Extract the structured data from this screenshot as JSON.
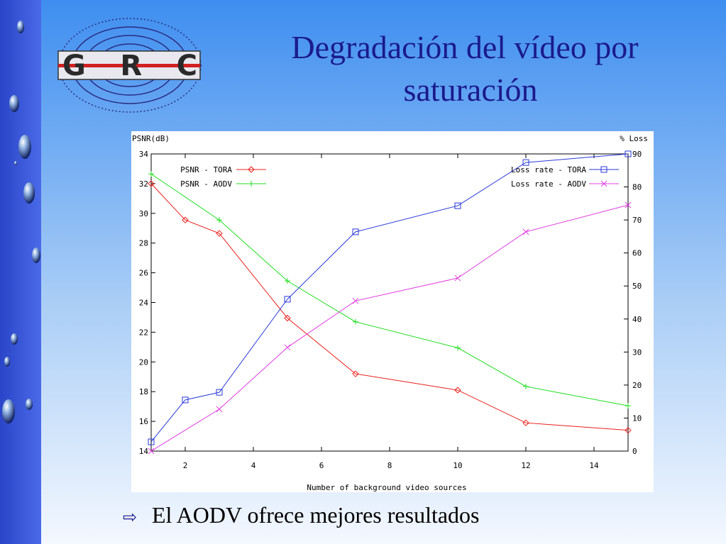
{
  "slide": {
    "logo": "GRC",
    "title_lines": [
      "Degradación del vídeo por",
      "saturación"
    ],
    "bullet": "El AODV ofrece mejores resultados"
  },
  "chart_data": {
    "type": "line",
    "ylabel": "PSNR(dB)",
    "y2label": "% Loss",
    "xlabel": "Number of background video sources",
    "xlim": [
      1,
      15
    ],
    "xticks": [
      2,
      4,
      6,
      8,
      10,
      12,
      14
    ],
    "ylim": [
      14,
      34
    ],
    "yticks": [
      14,
      16,
      18,
      20,
      22,
      24,
      26,
      28,
      30,
      32,
      34
    ],
    "y2lim": [
      0,
      90
    ],
    "y2ticks": [
      0,
      10,
      20,
      30,
      40,
      50,
      60,
      70,
      80,
      90
    ],
    "legend": "upper left",
    "legend2": "upper right",
    "series": [
      {
        "name": "PSNR - TORA",
        "color": "#e8201c",
        "marker": "diamond",
        "axis": "y",
        "x": [
          1,
          2,
          3,
          5,
          7,
          10,
          12,
          15
        ],
        "values": [
          32,
          29.55,
          28.65,
          22.95,
          19.2,
          18.1,
          15.9,
          15.4
        ]
      },
      {
        "name": "PSNR - AODV",
        "color": "#22dd22",
        "marker": "plus",
        "axis": "y",
        "x": [
          1,
          3,
          5,
          7,
          10,
          12,
          15
        ],
        "values": [
          32.65,
          29.55,
          25.45,
          22.7,
          20.95,
          18.35,
          17.05
        ]
      },
      {
        "name": "Loss rate - TORA",
        "color": "#2a3ad8",
        "marker": "square",
        "axis": "y2",
        "x": [
          1,
          2,
          3,
          5,
          7,
          10,
          12,
          15
        ],
        "values": [
          2.8,
          15.5,
          17.8,
          46,
          66.4,
          74.3,
          87.4,
          90
        ]
      },
      {
        "name": "Loss rate - AODV",
        "color": "#e040e0",
        "marker": "cross",
        "axis": "y2",
        "x": [
          1,
          3,
          5,
          7,
          10,
          12,
          15
        ],
        "values": [
          0,
          12.7,
          31.4,
          45.5,
          52.4,
          66.4,
          74.5
        ]
      }
    ]
  }
}
